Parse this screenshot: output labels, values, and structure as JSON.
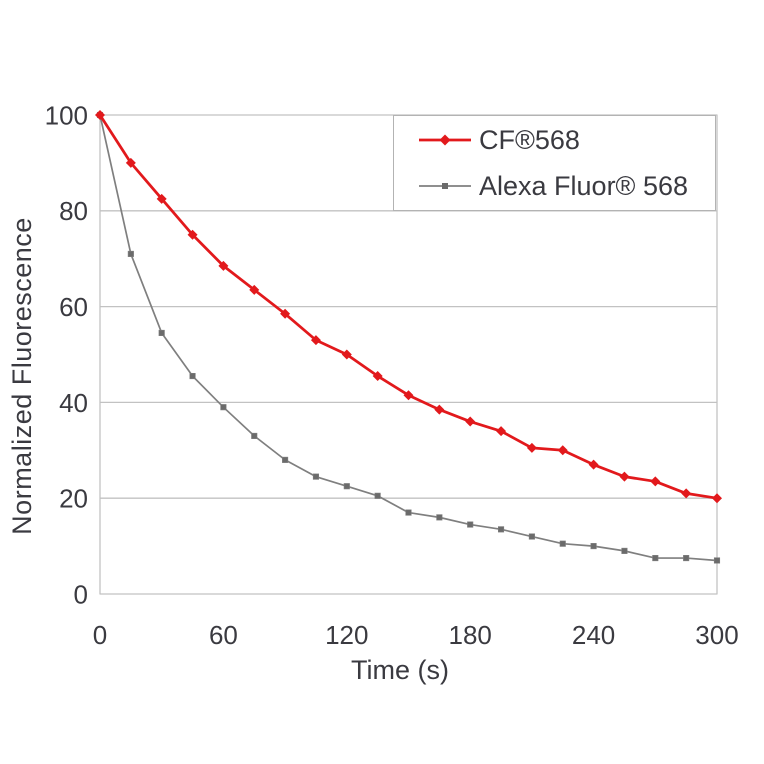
{
  "page": {
    "background": "#ffffff"
  },
  "chart_data": {
    "type": "line",
    "title": "",
    "xlabel": "Time (s)",
    "ylabel": "Normalized Fluorescence",
    "xlim": [
      0,
      300
    ],
    "ylim": [
      0,
      100
    ],
    "x_ticks": [
      0,
      60,
      120,
      180,
      240,
      300
    ],
    "y_ticks": [
      0,
      20,
      40,
      60,
      80,
      100
    ],
    "grid": "horizontal",
    "legend_position": "top-right-inside",
    "x": [
      0,
      15,
      30,
      45,
      60,
      75,
      90,
      105,
      120,
      135,
      150,
      165,
      180,
      195,
      210,
      225,
      240,
      255,
      270,
      285,
      300
    ],
    "series": [
      {
        "name": "CF®568",
        "color": "#e2191c",
        "marker": "diamond",
        "marker_color": "#e2191c",
        "line_width": 2.75,
        "values": [
          100,
          90,
          82.5,
          75,
          68.5,
          63.5,
          58.5,
          53,
          50,
          45.5,
          41.5,
          38.5,
          36,
          34,
          30.5,
          30,
          27,
          24.5,
          23.5,
          21,
          20
        ]
      },
      {
        "name": "Alexa Fluor® 568",
        "color": "#7f7f7f",
        "marker": "square",
        "marker_color": "#6b6b6b",
        "line_width": 1.7,
        "values": [
          100,
          71,
          54.5,
          45.5,
          39,
          33,
          28,
          24.5,
          22.5,
          20.5,
          17,
          16,
          14.5,
          13.5,
          12,
          10.5,
          10,
          9,
          7.5,
          7.5,
          7
        ]
      }
    ],
    "colors": {
      "gridline": "#c2c2c2",
      "axis_border": "#c2c2c2",
      "text": "#3a3a40",
      "legend_border": "#b3b3b3"
    }
  }
}
